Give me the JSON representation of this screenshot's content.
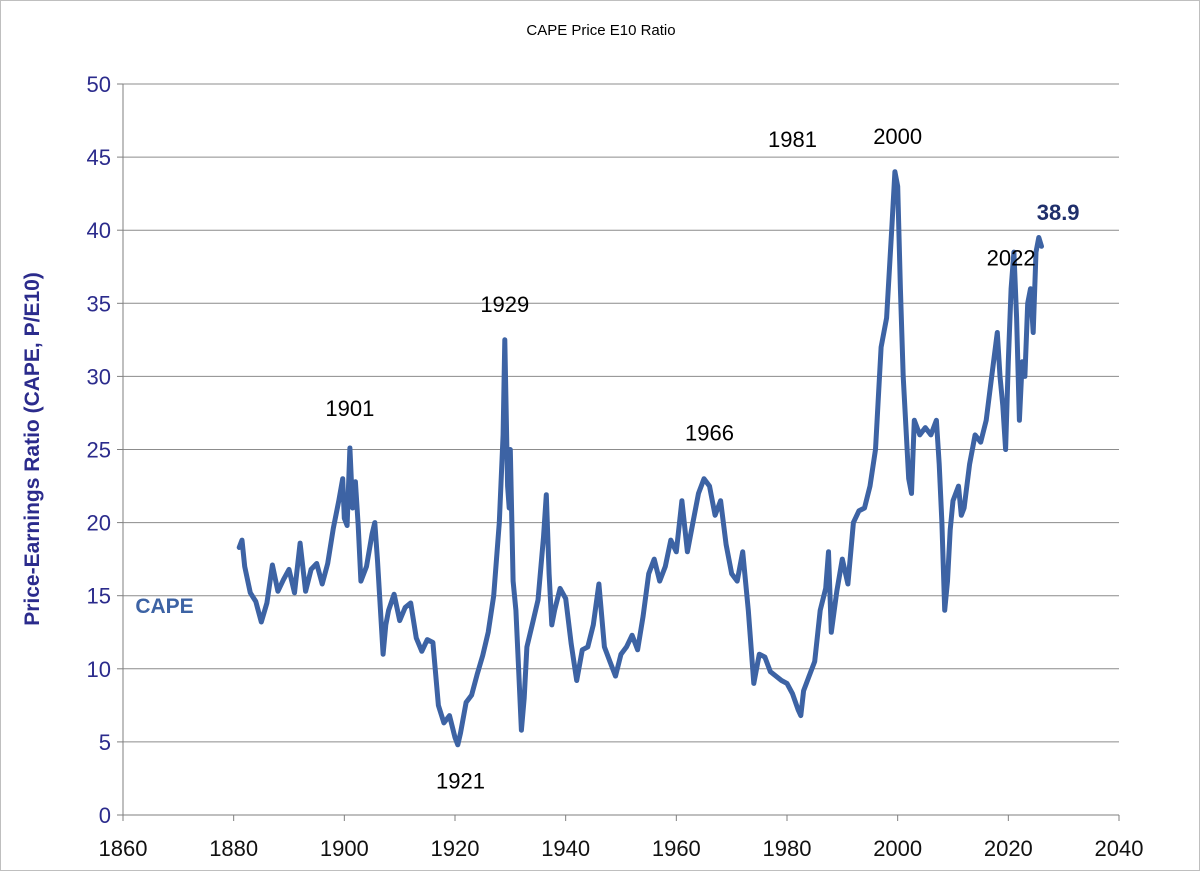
{
  "chart_data": {
    "type": "line",
    "title": "CAPE Price E10 Ratio",
    "xlabel": "",
    "ylabel": "Price-Earnings Ratio (CAPE, P/E10)",
    "xlim": [
      1860,
      2040
    ],
    "ylim": [
      0,
      50
    ],
    "xticks": [
      1860,
      1880,
      1900,
      1920,
      1940,
      1960,
      1980,
      2000,
      2020,
      2040
    ],
    "yticks": [
      0,
      5,
      10,
      15,
      20,
      25,
      30,
      35,
      40,
      45,
      50
    ],
    "grid": true,
    "series": [
      {
        "name": "CAPE",
        "color": "#3d63a4",
        "x": [
          1881,
          1881.5,
          1882,
          1883,
          1884,
          1885,
          1886,
          1887,
          1888,
          1889,
          1890,
          1891,
          1892,
          1893,
          1894,
          1895,
          1896,
          1897,
          1898,
          1899,
          1899.7,
          1900,
          1900.5,
          1901,
          1901.5,
          1902,
          1902.5,
          1903,
          1904,
          1905,
          1905.5,
          1906,
          1907,
          1907.5,
          1908,
          1909,
          1910,
          1911,
          1912,
          1913,
          1914,
          1915,
          1916,
          1917,
          1918,
          1919,
          1920,
          1920.5,
          1921,
          1922,
          1923,
          1924,
          1925,
          1926,
          1927,
          1928,
          1928.7,
          1929,
          1929.5,
          1929.8,
          1930,
          1930.5,
          1931,
          1931.5,
          1932,
          1932.5,
          1933,
          1934,
          1935,
          1936,
          1936.5,
          1937,
          1937.5,
          1938,
          1939,
          1940,
          1941,
          1942,
          1943,
          1944,
          1945,
          1946,
          1947,
          1948,
          1949,
          1950,
          1951,
          1952,
          1953,
          1954,
          1955,
          1956,
          1957,
          1958,
          1959,
          1960,
          1961,
          1962,
          1963,
          1964,
          1965,
          1966,
          1967,
          1968,
          1969,
          1970,
          1971,
          1972,
          1973,
          1974,
          1975,
          1976,
          1977,
          1978,
          1979,
          1980,
          1981,
          1982,
          1982.5,
          1983,
          1984,
          1985,
          1986,
          1987,
          1987.5,
          1988,
          1989,
          1990,
          1991,
          1992,
          1993,
          1994,
          1995,
          1996,
          1997,
          1998,
          1999,
          1999.5,
          2000,
          2000.5,
          2001,
          2002,
          2002.5,
          2003,
          2004,
          2005,
          2006,
          2007,
          2007.5,
          2008,
          2008.5,
          2009,
          2009.5,
          2010,
          2011,
          2011.5,
          2012,
          2013,
          2014,
          2015,
          2016,
          2017,
          2018,
          2018.5,
          2019,
          2019.5,
          2020,
          2020.5,
          2021,
          2021.5,
          2022,
          2022.5,
          2023,
          2023.5,
          2024,
          2024.5,
          2025,
          2025.5,
          2026
        ],
        "values": [
          18.3,
          18.8,
          17.0,
          15.2,
          14.6,
          13.2,
          14.5,
          17.1,
          15.3,
          16.1,
          16.8,
          15.2,
          18.6,
          15.3,
          16.8,
          17.2,
          15.8,
          17.2,
          19.6,
          21.5,
          23.0,
          20.3,
          19.8,
          25.1,
          21.0,
          22.8,
          19.8,
          16.0,
          17.0,
          19.2,
          20.0,
          17.4,
          11.0,
          13.0,
          14.0,
          15.1,
          13.3,
          14.2,
          14.5,
          12.1,
          11.2,
          12.0,
          11.8,
          7.5,
          6.3,
          6.8,
          5.3,
          4.8,
          5.6,
          7.7,
          8.2,
          9.6,
          10.9,
          12.5,
          15.0,
          20.0,
          26.0,
          32.5,
          22.5,
          21.0,
          25.0,
          16.0,
          14.0,
          10.0,
          5.8,
          8.0,
          11.5,
          13.1,
          14.7,
          19.0,
          21.9,
          16.5,
          13.0,
          14.0,
          15.5,
          14.8,
          11.7,
          9.2,
          11.3,
          11.5,
          13.0,
          15.8,
          11.5,
          10.5,
          9.5,
          11.0,
          11.5,
          12.3,
          11.3,
          13.6,
          16.5,
          17.5,
          16.0,
          17.0,
          18.8,
          18.0,
          21.5,
          18.0,
          20.0,
          22.0,
          23.0,
          22.5,
          20.5,
          21.5,
          18.5,
          16.5,
          16.0,
          18.0,
          14.0,
          9.0,
          11.0,
          10.8,
          9.8,
          9.5,
          9.2,
          9.0,
          8.3,
          7.2,
          6.8,
          8.5,
          9.5,
          10.5,
          14.0,
          15.5,
          18.0,
          12.5,
          15.3,
          17.5,
          15.8,
          20.0,
          20.8,
          21.0,
          22.5,
          25.0,
          32.0,
          34.0,
          40.5,
          44.0,
          43.0,
          36.0,
          30.0,
          23.0,
          22.0,
          27.0,
          26.0,
          26.5,
          26.0,
          27.0,
          24.0,
          20.0,
          14.0,
          16.0,
          19.5,
          21.5,
          22.5,
          20.5,
          21.0,
          24.0,
          26.0,
          25.5,
          27.0,
          30.0,
          33.0,
          30.0,
          28.0,
          25.0,
          31.0,
          36.0,
          38.5,
          34.0,
          27.0,
          31.0,
          30.0,
          35.0,
          36.0,
          33.0,
          38.5,
          39.5,
          38.9
        ]
      }
    ],
    "annotations": [
      {
        "text": "1901",
        "x": 1901,
        "y": 27.3
      },
      {
        "text": "1929",
        "x": 1929,
        "y": 34.4
      },
      {
        "text": "1921",
        "x": 1921,
        "y": 1.8
      },
      {
        "text": "1966",
        "x": 1966,
        "y": 25.6
      },
      {
        "text": "1981",
        "x": 1981,
        "y": 45.7
      },
      {
        "text": "2000",
        "x": 2000,
        "y": 45.9
      },
      {
        "text": "2022",
        "x": 2020.5,
        "y": 37.6
      },
      {
        "text": "38.9",
        "x": 2029,
        "y": 40.7,
        "bold": true
      }
    ],
    "series_label": {
      "text": "CAPE",
      "x": 1867.5,
      "y": 13.8
    }
  }
}
